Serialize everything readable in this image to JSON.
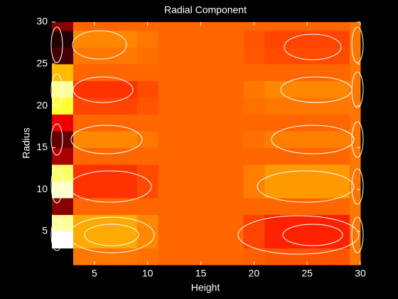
{
  "chart_data": {
    "type": "heatmap",
    "title": "Radial Component",
    "x_label": "Height",
    "y_label": "Radius",
    "colormap": "hot",
    "clim": [
      -1,
      1
    ],
    "xlim": [
      1,
      30
    ],
    "ylim": [
      1,
      30
    ],
    "xticks": [
      5,
      10,
      15,
      20,
      25,
      30
    ],
    "yticks": [
      5,
      10,
      15,
      20,
      25,
      30
    ],
    "xbins": [
      1,
      3,
      5,
      7,
      9,
      11,
      13,
      15,
      17,
      19,
      21,
      23,
      25,
      27,
      29,
      30
    ],
    "ybins": [
      1,
      3,
      5,
      7,
      9,
      11,
      13,
      15,
      17,
      19,
      21,
      23,
      25,
      27,
      29,
      30
    ],
    "z": [
      [
        -1,
        0.1,
        0.1,
        0.1,
        0.08,
        0.05,
        0.05,
        0.05,
        0.05,
        0.03,
        0,
        0,
        0,
        0,
        0.1
      ],
      [
        1,
        0.25,
        0.25,
        0.25,
        0.15,
        0.05,
        0.05,
        0.05,
        0.05,
        -0.05,
        -0.15,
        -0.15,
        -0.15,
        -0.15,
        0.1
      ],
      [
        0.8,
        0.25,
        0.25,
        0.25,
        0.15,
        0.05,
        0.05,
        0.05,
        0.05,
        -0.05,
        -0.15,
        -0.15,
        -0.15,
        -0.15,
        0.1
      ],
      [
        -0.6,
        0.05,
        0.05,
        0.05,
        0.05,
        0.05,
        0.05,
        0.05,
        0.05,
        0.05,
        0.05,
        0.05,
        0.05,
        0.05,
        0.1
      ],
      [
        0.9,
        -0.1,
        -0.1,
        -0.1,
        -0.03,
        0.05,
        0.05,
        0.05,
        0.05,
        0.12,
        0.2,
        0.2,
        0.2,
        0.2,
        0.1
      ],
      [
        0.7,
        -0.1,
        -0.1,
        -0.1,
        -0.03,
        0.05,
        0.05,
        0.05,
        0.05,
        0.12,
        0.2,
        0.2,
        0.2,
        0.2,
        0.1
      ],
      [
        -0.5,
        0.05,
        0.05,
        0.05,
        0.05,
        0.05,
        0.05,
        0.05,
        0.05,
        0.05,
        0.05,
        0.05,
        0.05,
        0.05,
        0.1
      ],
      [
        -0.7,
        0.15,
        0.15,
        0.15,
        0.1,
        0.05,
        0.05,
        0.05,
        0.05,
        0.08,
        0.12,
        0.12,
        0.12,
        0.12,
        0.1
      ],
      [
        -0.3,
        0.05,
        0.05,
        0.05,
        0.05,
        0.05,
        0.05,
        0.05,
        0.05,
        0.05,
        0.05,
        0.05,
        0.05,
        0.05,
        0.1
      ],
      [
        0.6,
        -0.05,
        -0.05,
        -0.05,
        0,
        0.05,
        0.05,
        0.05,
        0.05,
        0.08,
        0.1,
        0.1,
        0.1,
        0.1,
        0.1
      ],
      [
        0.8,
        -0.1,
        -0.1,
        -0.1,
        -0.03,
        0.05,
        0.05,
        0.05,
        0.05,
        0.1,
        0.15,
        0.15,
        0.15,
        0.15,
        0.1
      ],
      [
        0.3,
        0.05,
        0.05,
        0.05,
        0.05,
        0.05,
        0.05,
        0.05,
        0.05,
        0.05,
        0.05,
        0.05,
        0.05,
        0.05,
        0.1
      ],
      [
        -0.8,
        0.1,
        0.1,
        0.1,
        0.08,
        0.05,
        0.05,
        0.05,
        0.05,
        0.01,
        -0.03,
        -0.03,
        -0.03,
        -0.03,
        0.1
      ],
      [
        -0.9,
        0.15,
        0.15,
        0.15,
        0.1,
        0.05,
        0.05,
        0.05,
        0.05,
        0,
        -0.05,
        -0.05,
        -0.05,
        -0.05,
        0.1
      ],
      [
        -0.6,
        0.05,
        0.05,
        0.05,
        0.05,
        0.05,
        0.05,
        0.05,
        0.05,
        0.05,
        0.05,
        0.05,
        0.05,
        0.05,
        0.1
      ]
    ]
  }
}
